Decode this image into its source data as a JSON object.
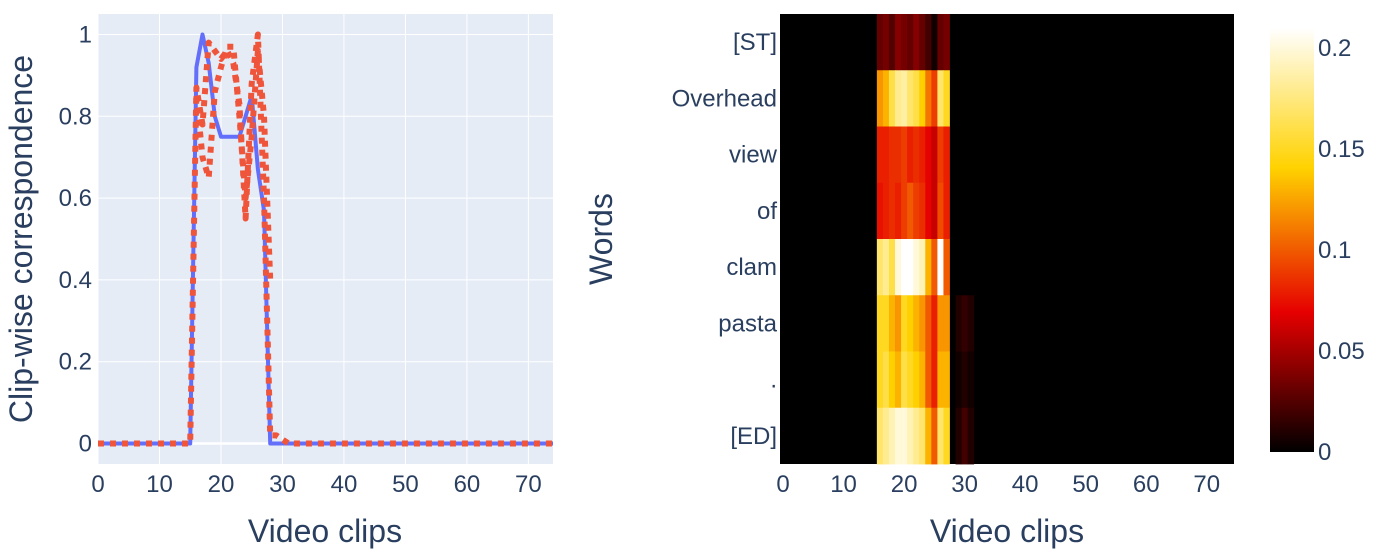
{
  "colors": {
    "plot_bg": "#e5ecf6",
    "grid": "#ffffff",
    "text": "#2a3f5f",
    "solid_line": "#636efa",
    "dotted_line": "#ef553b"
  },
  "chart_data": [
    {
      "type": "line",
      "title": "",
      "xlabel": "Video clips",
      "ylabel": "Clip-wise correspondence",
      "xlim": [
        0,
        74
      ],
      "ylim": [
        -0.05,
        1.05
      ],
      "xticks": [
        "0",
        "10",
        "20",
        "30",
        "40",
        "50",
        "60",
        "70"
      ],
      "yticks": [
        "0",
        "0.2",
        "0.4",
        "0.6",
        "0.8",
        "1"
      ],
      "grid": true,
      "legend": "none",
      "series": [
        {
          "style": "solid",
          "color": "#636efa",
          "x": [
            0,
            15,
            16,
            17,
            18,
            19,
            20,
            21,
            22,
            23,
            24,
            25,
            26,
            27,
            28,
            29,
            74
          ],
          "y": [
            0,
            0,
            0.92,
            1.0,
            0.93,
            0.8,
            0.75,
            0.75,
            0.75,
            0.75,
            0.8,
            0.85,
            0.67,
            0.57,
            0.0,
            0,
            0
          ]
        },
        {
          "style": "dotted",
          "color": "#ef553b",
          "x": [
            0,
            15,
            16,
            17,
            18,
            19,
            20,
            21,
            22,
            23,
            24,
            25,
            26,
            27,
            28,
            29,
            30,
            31,
            74
          ],
          "y": [
            0,
            0,
            0.87,
            0.78,
            0.98,
            0.96,
            0.94,
            0.96,
            0.93,
            0.83,
            0.55,
            0.88,
            1.0,
            0.6,
            0.02,
            0.02,
            0.01,
            0,
            0
          ]
        },
        {
          "style": "dotted",
          "color": "#ef553b",
          "x": [
            16,
            17,
            18,
            19,
            20,
            21,
            22,
            23,
            24,
            25,
            26,
            27,
            28
          ],
          "y": [
            0.85,
            0.7,
            0.65,
            0.86,
            0.92,
            0.97,
            0.97,
            0.8,
            0.6,
            0.75,
            0.96,
            0.8,
            0.4
          ]
        }
      ]
    },
    {
      "type": "heatmap",
      "title": "",
      "xlabel": "Video clips",
      "ylabel": "Words",
      "xlim": [
        -0.5,
        74.5
      ],
      "xticks": [
        "0",
        "10",
        "20",
        "30",
        "40",
        "50",
        "60",
        "70"
      ],
      "rows": [
        "[ST]",
        "Overhead",
        "view",
        "of",
        "clam",
        "pasta",
        ".",
        "[ED]"
      ],
      "colorscale": "hot",
      "zmin": 0,
      "zmax": 0.21,
      "colorbar_ticks": [
        "0",
        "0.05",
        "0.1",
        "0.15",
        "0.2"
      ],
      "nonzero_start_col": 16,
      "values": [
        [
          0.03,
          0.035,
          0.025,
          0.04,
          0.035,
          0.03,
          0.04,
          0.03,
          0.02,
          0.005,
          0.03,
          0.035,
          0,
          0,
          0,
          0
        ],
        [
          0.12,
          0.13,
          0.16,
          0.18,
          0.185,
          0.17,
          0.16,
          0.14,
          0.11,
          0.09,
          0.17,
          0.15,
          0,
          0,
          0,
          0
        ],
        [
          0.08,
          0.08,
          0.085,
          0.085,
          0.09,
          0.08,
          0.085,
          0.08,
          0.07,
          0.06,
          0.09,
          0.08,
          0,
          0,
          0,
          0
        ],
        [
          0.075,
          0.08,
          0.085,
          0.08,
          0.09,
          0.1,
          0.09,
          0.085,
          0.07,
          0.06,
          0.095,
          0.08,
          0,
          0,
          0,
          0
        ],
        [
          0.17,
          0.18,
          0.16,
          0.2,
          0.21,
          0.21,
          0.2,
          0.19,
          0.13,
          0.1,
          0.21,
          0.1,
          0,
          0,
          0,
          0
        ],
        [
          0.15,
          0.15,
          0.13,
          0.12,
          0.15,
          0.14,
          0.13,
          0.12,
          0.1,
          0.08,
          0.12,
          0.12,
          0,
          0.01,
          0.015,
          0.01
        ],
        [
          0.15,
          0.16,
          0.14,
          0.13,
          0.16,
          0.15,
          0.14,
          0.13,
          0.1,
          0.08,
          0.13,
          0.13,
          0,
          0.005,
          0.01,
          0.005
        ],
        [
          0.17,
          0.18,
          0.19,
          0.2,
          0.2,
          0.19,
          0.18,
          0.17,
          0.13,
          0.1,
          0.17,
          0.15,
          0,
          0.01,
          0.02,
          0.01
        ]
      ]
    }
  ]
}
